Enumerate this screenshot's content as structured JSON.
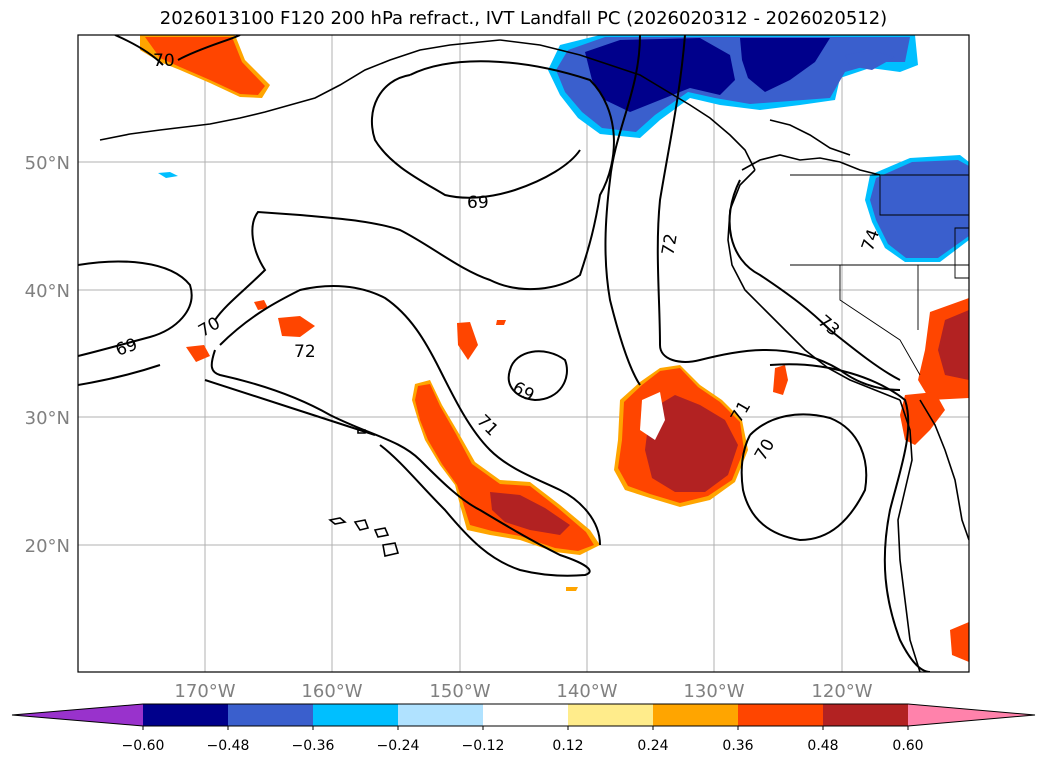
{
  "title": "2026013100 F120 200 hPa refract., IVT Landfall PC (2026020312 - 2026020512)",
  "map": {
    "lat_labels": [
      "50°N",
      "40°N",
      "30°N",
      "20°N"
    ],
    "lon_labels": [
      "170°W",
      "160°W",
      "150°W",
      "140°W",
      "130°W",
      "120°W"
    ],
    "contour_labels": [
      "70",
      "69",
      "70",
      "72",
      "69",
      "71",
      "69",
      "72",
      "71",
      "70",
      "74",
      "73"
    ],
    "contour_label_note": "",
    "colors": {
      "ocean": "#ffffff",
      "grid": "#b0b0b0",
      "coast": "#000000"
    }
  },
  "colorbar": {
    "ticks": [
      "−0.60",
      "−0.48",
      "−0.36",
      "−0.24",
      "−0.12",
      "0.12",
      "0.24",
      "0.36",
      "0.48",
      "0.60"
    ],
    "colors": [
      "#9932cc",
      "#00008b",
      "#3a5fcd",
      "#00bfff",
      "#b0e2ff",
      "#ffffff",
      "#ffec8b",
      "#ffa500",
      "#ff4500",
      "#b22222",
      "#ff82ab"
    ]
  }
}
